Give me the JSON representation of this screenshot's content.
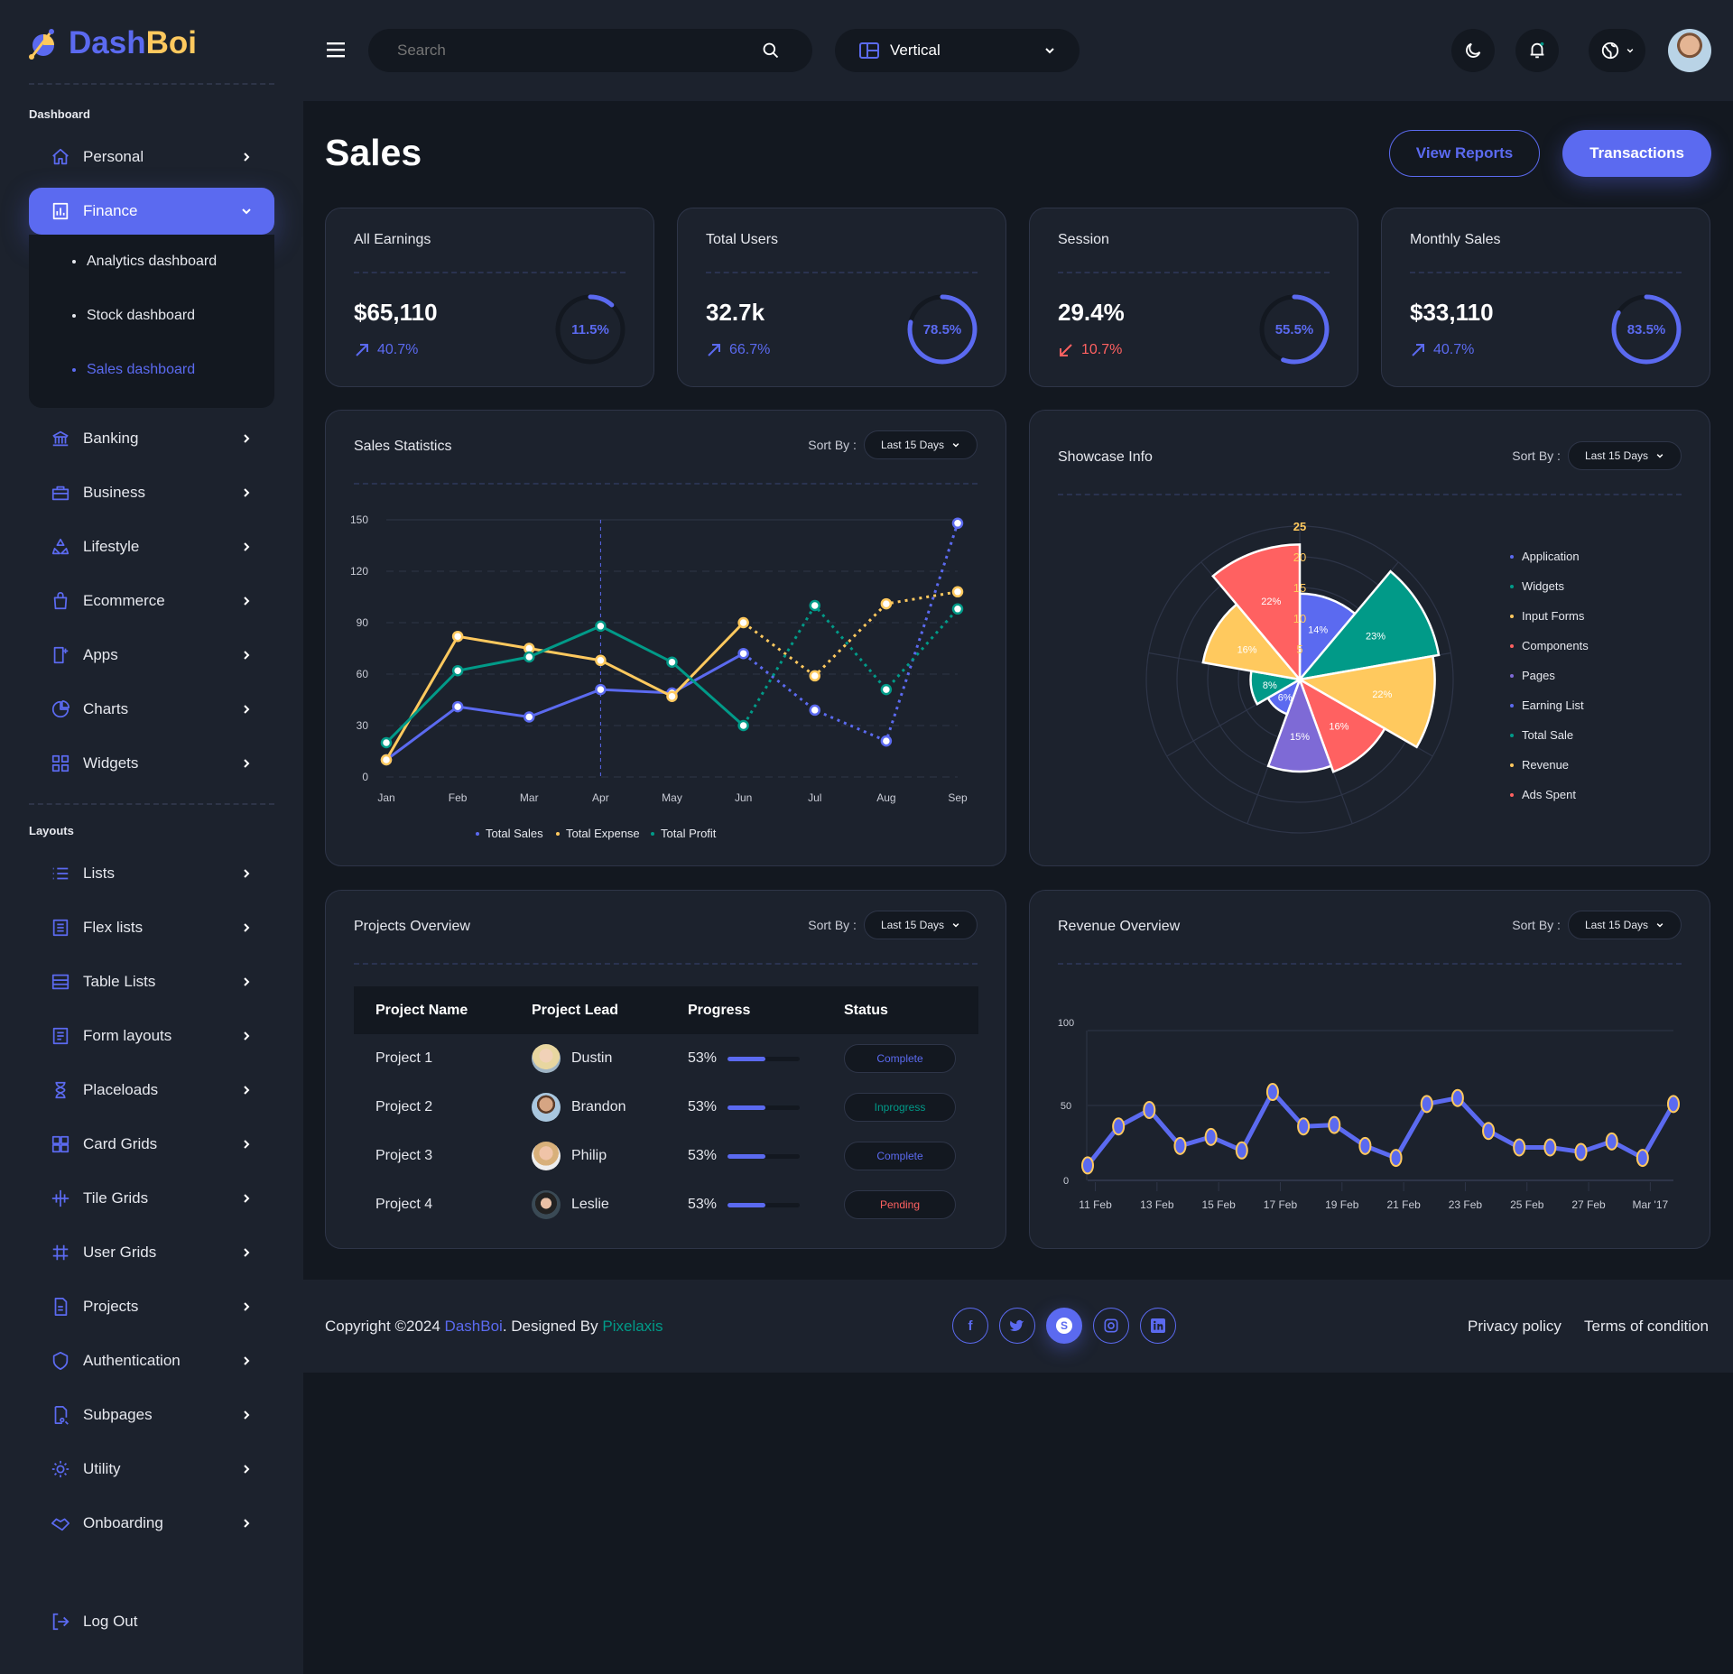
{
  "brand": {
    "name_part1": "Dash",
    "name_part2": "Boi"
  },
  "colors": {
    "accent": "#5b6af0",
    "yellow": "#ffc95e",
    "teal": "#019a88",
    "red": "#ff6161",
    "purple": "#7e6ad6",
    "card": "#1c222d",
    "bg": "#131820"
  },
  "header": {
    "search_placeholder": "Search",
    "layout_select": "Vertical",
    "icons": [
      "menu-icon",
      "search-icon",
      "layout-icon",
      "moon-icon",
      "bell-icon",
      "globe-icon"
    ]
  },
  "sidebar": {
    "section1": "Dashboard",
    "top_items": [
      {
        "label": "Personal",
        "icon": "home"
      },
      {
        "label": "Finance",
        "icon": "chart-bar",
        "active": true
      }
    ],
    "finance_sub": [
      {
        "label": "Analytics dashboard"
      },
      {
        "label": "Stock dashboard"
      },
      {
        "label": "Sales dashboard",
        "active": true
      }
    ],
    "items": [
      {
        "label": "Banking",
        "icon": "bank"
      },
      {
        "label": "Business",
        "icon": "briefcase"
      },
      {
        "label": "Lifestyle",
        "icon": "recycle"
      },
      {
        "label": "Ecommerce",
        "icon": "bag"
      },
      {
        "label": "Apps",
        "icon": "apps"
      },
      {
        "label": "Charts",
        "icon": "pie"
      },
      {
        "label": "Widgets",
        "icon": "widgets"
      }
    ],
    "section2": "Layouts",
    "layout_items": [
      {
        "label": "Lists",
        "icon": "list"
      },
      {
        "label": "Flex lists",
        "icon": "flex-list"
      },
      {
        "label": "Table Lists",
        "icon": "table"
      },
      {
        "label": "Form layouts",
        "icon": "form"
      },
      {
        "label": "Placeloads",
        "icon": "hourglass"
      },
      {
        "label": "Card Grids",
        "icon": "grid"
      },
      {
        "label": "Tile Grids",
        "icon": "tile"
      },
      {
        "label": "User Grids",
        "icon": "hash"
      },
      {
        "label": "Projects",
        "icon": "file"
      },
      {
        "label": "Authentication",
        "icon": "shield"
      },
      {
        "label": "Subpages",
        "icon": "file-search"
      },
      {
        "label": "Utility",
        "icon": "gear"
      },
      {
        "label": "Onboarding",
        "icon": "handshake"
      }
    ],
    "logout": "Log Out"
  },
  "page": {
    "title": "Sales",
    "view_reports": "View Reports",
    "transactions": "Transactions"
  },
  "stats": [
    {
      "title": "All Earnings",
      "value": "$65,110",
      "change": "40.7%",
      "trend": "up",
      "ring": 11.5,
      "ring_label": "11.5%"
    },
    {
      "title": "Total Users",
      "value": "32.7k",
      "change": "66.7%",
      "trend": "up",
      "ring": 78.5,
      "ring_label": "78.5%"
    },
    {
      "title": "Session",
      "value": "29.4%",
      "change": "10.7%",
      "trend": "down",
      "ring": 55.5,
      "ring_label": "55.5%"
    },
    {
      "title": "Monthly Sales",
      "value": "$33,110",
      "change": "40.7%",
      "trend": "up",
      "ring": 83.5,
      "ring_label": "83.5%"
    }
  ],
  "sort_label": "Sort By :",
  "sort_value": "Last 15 Days",
  "chart_data": [
    {
      "type": "line",
      "title": "Sales Statistics",
      "categories": [
        "Jan",
        "Feb",
        "Mar",
        "Apr",
        "May",
        "Jun",
        "Jul",
        "Aug",
        "Sep"
      ],
      "ylim": [
        0,
        150
      ],
      "yticks": [
        0,
        30,
        60,
        90,
        120,
        150
      ],
      "grid": true,
      "legend": "bottom",
      "dashed_from": "Jun",
      "series": [
        {
          "name": "Total Sales",
          "color": "#5b6af0",
          "values": [
            10,
            41,
            35,
            51,
            49,
            72,
            39,
            21,
            148
          ]
        },
        {
          "name": "Total Expense",
          "color": "#ffc95e",
          "values": [
            10,
            82,
            75,
            68,
            47,
            90,
            59,
            101,
            108
          ]
        },
        {
          "name": "Total Profit",
          "color": "#019a88",
          "values": [
            20,
            62,
            70,
            88,
            67,
            30,
            100,
            51,
            98
          ]
        }
      ]
    },
    {
      "type": "polar-area",
      "title": "Showcase Info",
      "rticks": [
        5,
        10,
        15,
        20,
        25
      ],
      "legend": "right",
      "categories": [
        "Application",
        "Widgets",
        "Input Forms",
        "Components",
        "Pages",
        "Earning List",
        "Total Sale",
        "Revenue",
        "Ads Spent"
      ],
      "values": [
        14,
        23,
        22,
        16,
        15,
        6,
        8,
        16,
        22
      ],
      "labels": [
        "14%",
        "23%",
        "22%",
        "16%",
        "15%",
        "6%",
        "8%",
        "16%",
        "22%"
      ],
      "colors": [
        "#5b6af0",
        "#019a88",
        "#ffc95e",
        "#ff6161",
        "#7e6ad6",
        "#5b6af0",
        "#019a88",
        "#ffc95e",
        "#ff6161"
      ]
    },
    {
      "type": "line",
      "title": "Revenue Overview",
      "ylim": [
        0,
        100
      ],
      "yticks": [
        0,
        50,
        100
      ],
      "grid": true,
      "xticks": [
        "11 Feb",
        "13 Feb",
        "15 Feb",
        "17 Feb",
        "19 Feb",
        "21 Feb",
        "23 Feb",
        "25 Feb",
        "27 Feb",
        "Mar '17"
      ],
      "series": [
        {
          "color": "#5b6af0",
          "marker_stroke": "#ffc95e",
          "values": [
            10,
            36,
            47,
            23,
            29,
            20,
            59,
            36,
            37,
            23,
            15,
            51,
            55,
            33,
            22,
            22,
            19,
            26,
            15,
            51
          ]
        }
      ]
    }
  ],
  "projects": {
    "title": "Projects Overview",
    "columns": [
      "Project Name",
      "Project Lead",
      "Progress",
      "Status"
    ],
    "rows": [
      {
        "name": "Project 1",
        "lead": "Dustin",
        "progress": 53,
        "progress_label": "53%",
        "status": "Complete",
        "status_color": "#5b6af0"
      },
      {
        "name": "Project 2",
        "lead": "Brandon",
        "progress": 53,
        "progress_label": "53%",
        "status": "Inprogress",
        "status_color": "#019a88"
      },
      {
        "name": "Project 3",
        "lead": "Philip",
        "progress": 53,
        "progress_label": "53%",
        "status": "Complete",
        "status_color": "#5b6af0"
      },
      {
        "name": "Project 4",
        "lead": "Leslie",
        "progress": 53,
        "progress_label": "53%",
        "status": "Pending",
        "status_color": "#ff6161"
      }
    ]
  },
  "footer": {
    "copyright": "Copyright ©2024 ",
    "brand": "DashBoi",
    "designed": ". Designed By ",
    "designer": "Pixelaxis",
    "social": [
      "facebook",
      "twitter",
      "skype",
      "instagram",
      "linkedin"
    ],
    "privacy": "Privacy policy",
    "terms": "Terms of condition"
  }
}
